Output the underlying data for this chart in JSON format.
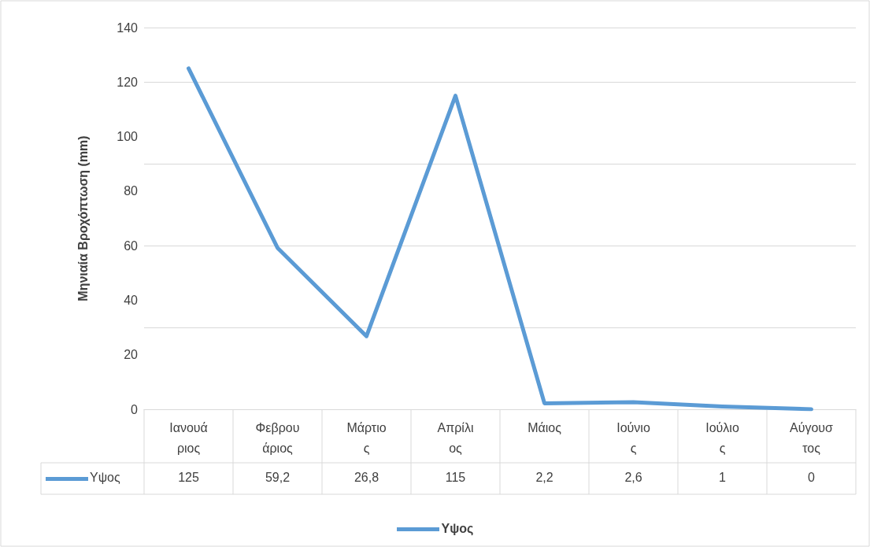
{
  "chart_data": {
    "type": "line",
    "ylabel": "Μηνιαία Βροχόπτωση (mm)",
    "categories": [
      "Ιανουάριος",
      "Φεβρουάριος",
      "Μάρτιος",
      "Απρίλιος",
      "Μάιος",
      "Ιούνιος",
      "Ιούλιος",
      "Αύγουστος"
    ],
    "series": [
      {
        "name": "Υψος",
        "color": "#5b9bd5",
        "values": [
          125,
          59.2,
          26.8,
          115,
          2.2,
          2.6,
          1,
          0
        ],
        "value_labels": [
          "125",
          "59,2",
          "26,8",
          "115",
          "2,2",
          "2,6",
          "1",
          "0"
        ]
      }
    ],
    "ylim": [
      0,
      140
    ],
    "yticks": [
      0,
      20,
      40,
      60,
      80,
      100,
      120,
      140
    ],
    "grid": "y",
    "legend": "bottom",
    "marker": "none",
    "line_style": "solid"
  }
}
